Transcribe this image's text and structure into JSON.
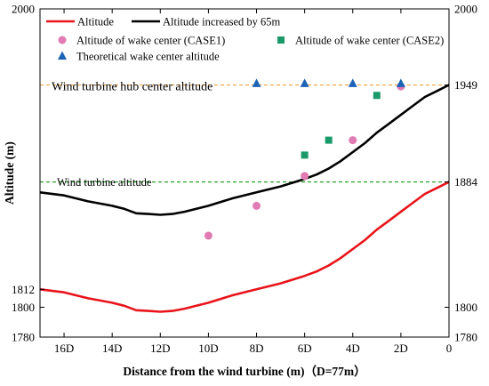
{
  "chart_data": {
    "type": "line",
    "xlabel": "Distance from the wind turbine (m)（D=77m）",
    "ylabel": "Altitude (m)",
    "xlim": [
      17,
      0
    ],
    "ylim": [
      1780,
      2000
    ],
    "x_ticks": [
      16,
      14,
      12,
      10,
      8,
      6,
      4,
      2,
      0
    ],
    "x_tick_labels": [
      "16D",
      "14D",
      "12D",
      "10D",
      "8D",
      "6D",
      "4D",
      "2D",
      "0"
    ],
    "y_ticks_left": [
      1780,
      1800,
      1812,
      2000
    ],
    "y_ticks_right": [
      1780,
      1800,
      1884,
      1949,
      2000
    ],
    "legend_position": "top-left",
    "series": [
      {
        "name": "Altitude",
        "kind": "line",
        "color": "#e8141a",
        "x": [
          17,
          16,
          15,
          14,
          13.5,
          13,
          12.5,
          12,
          11.5,
          11,
          10,
          9,
          8,
          7,
          6,
          5.5,
          5,
          4.5,
          4,
          3.5,
          3,
          2.5,
          2,
          1.5,
          1,
          0.5,
          0
        ],
        "y": [
          1812,
          1810,
          1806,
          1803,
          1801,
          1798,
          1797.5,
          1797,
          1797.5,
          1799,
          1803,
          1808,
          1812,
          1816,
          1821,
          1824,
          1828,
          1833,
          1839,
          1845,
          1852,
          1858,
          1864,
          1870,
          1876,
          1880,
          1884
        ]
      },
      {
        "name": "Altitude increased by 65m",
        "kind": "line",
        "color": "#000000",
        "x": [
          17,
          16,
          15,
          14,
          13.5,
          13,
          12.5,
          12,
          11.5,
          11,
          10,
          9,
          8,
          7,
          6,
          5.5,
          5,
          4.5,
          4,
          3.5,
          3,
          2.5,
          2,
          1.5,
          1,
          0.5,
          0
        ],
        "y": [
          1877,
          1875,
          1871,
          1868,
          1866,
          1863,
          1862.5,
          1862,
          1862.5,
          1864,
          1868,
          1873,
          1877,
          1881,
          1886,
          1889,
          1893,
          1898,
          1904,
          1910,
          1917,
          1923,
          1929,
          1935,
          1941,
          1945,
          1949
        ]
      },
      {
        "name": "Altitude of wake center (CASE1)",
        "kind": "scatter",
        "marker": "circle",
        "color": "#e07bb3",
        "x": [
          10,
          8,
          6,
          4,
          2
        ],
        "y": [
          1848,
          1868,
          1888,
          1912,
          1948
        ]
      },
      {
        "name": "Altitude of wake center (CASE2)",
        "kind": "scatter",
        "marker": "square",
        "color": "#1a9a6a",
        "x": [
          6,
          5,
          3
        ],
        "y": [
          1902,
          1912,
          1942
        ]
      },
      {
        "name": "Theoretical wake center altitude",
        "kind": "scatter",
        "marker": "triangle",
        "color": "#1b63b5",
        "x": [
          8,
          6,
          4,
          2
        ],
        "y": [
          1950,
          1950,
          1950,
          1950
        ]
      }
    ],
    "annotations": [
      {
        "text": "Wind turbine hub center altitude",
        "y": 1949,
        "color": "#f0a040",
        "style": "dashed"
      },
      {
        "text": "Wind turbine altitude",
        "y": 1884,
        "color": "#1a9a1a",
        "style": "dashed"
      }
    ]
  }
}
